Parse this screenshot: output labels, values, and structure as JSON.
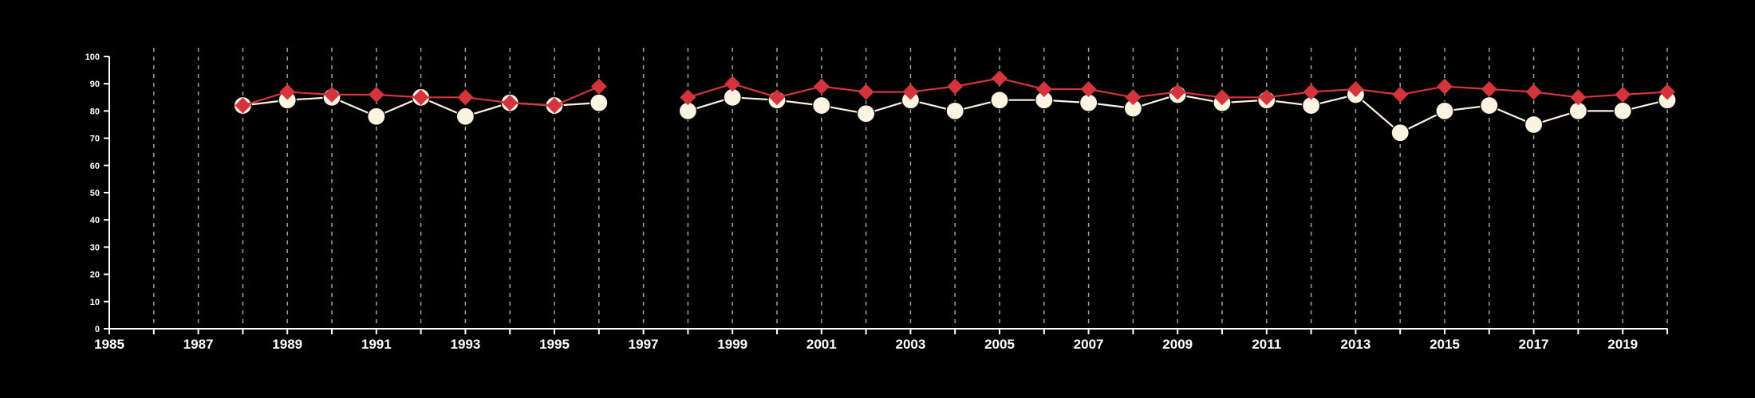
{
  "chart_data": {
    "type": "line",
    "title": "",
    "xlabel": "",
    "ylabel": "",
    "xlim": [
      1985,
      2020
    ],
    "ylim": [
      0,
      100
    ],
    "x_ticks": [
      "1985",
      "1987",
      "1989",
      "1991",
      "1993",
      "1995",
      "1997",
      "1999",
      "2001",
      "2003",
      "2005",
      "2007",
      "2009",
      "2011",
      "2013",
      "2015",
      "2017",
      "2019"
    ],
    "y_ticks": [
      "0",
      "10",
      "20",
      "30",
      "40",
      "50",
      "60",
      "70",
      "80",
      "90",
      "100"
    ],
    "grid": "vertical dashed lines at every year",
    "legend": "none",
    "series": [
      {
        "color": "#fdf3e3",
        "marker": "circle",
        "points": [
          {
            "x": 1988,
            "y": 82
          },
          {
            "x": 1989,
            "y": 84
          },
          {
            "x": 1990,
            "y": 85
          },
          {
            "x": 1991,
            "y": 78
          },
          {
            "x": 1992,
            "y": 85
          },
          {
            "x": 1993,
            "y": 78
          },
          {
            "x": 1994,
            "y": 83
          },
          {
            "x": 1995,
            "y": 82
          },
          {
            "x": 1996,
            "y": 83
          },
          {
            "x": 1997,
            "y": null
          },
          {
            "x": 1998,
            "y": 80
          },
          {
            "x": 1999,
            "y": 85
          },
          {
            "x": 2000,
            "y": 84
          },
          {
            "x": 2001,
            "y": 82
          },
          {
            "x": 2002,
            "y": 79
          },
          {
            "x": 2003,
            "y": 84
          },
          {
            "x": 2004,
            "y": 80
          },
          {
            "x": 2005,
            "y": 84
          },
          {
            "x": 2006,
            "y": 84
          },
          {
            "x": 2007,
            "y": 83
          },
          {
            "x": 2008,
            "y": 81
          },
          {
            "x": 2009,
            "y": 86
          },
          {
            "x": 2010,
            "y": 83
          },
          {
            "x": 2011,
            "y": 84
          },
          {
            "x": 2012,
            "y": 82
          },
          {
            "x": 2013,
            "y": 86
          },
          {
            "x": 2014,
            "y": 72
          },
          {
            "x": 2015,
            "y": 80
          },
          {
            "x": 2016,
            "y": 82
          },
          {
            "x": 2017,
            "y": 75
          },
          {
            "x": 2018,
            "y": 80
          },
          {
            "x": 2019,
            "y": 80
          },
          {
            "x": 2020,
            "y": 84
          }
        ]
      },
      {
        "color": "#d4343c",
        "marker": "diamond",
        "points": [
          {
            "x": 1988,
            "y": 82
          },
          {
            "x": 1989,
            "y": 87
          },
          {
            "x": 1990,
            "y": 86
          },
          {
            "x": 1991,
            "y": 86
          },
          {
            "x": 1992,
            "y": 85
          },
          {
            "x": 1993,
            "y": 85
          },
          {
            "x": 1994,
            "y": 83
          },
          {
            "x": 1995,
            "y": 82
          },
          {
            "x": 1996,
            "y": 89
          },
          {
            "x": 1997,
            "y": null
          },
          {
            "x": 1998,
            "y": 85
          },
          {
            "x": 1999,
            "y": 90
          },
          {
            "x": 2000,
            "y": 85
          },
          {
            "x": 2001,
            "y": 89
          },
          {
            "x": 2002,
            "y": 87
          },
          {
            "x": 2003,
            "y": 87
          },
          {
            "x": 2004,
            "y": 89
          },
          {
            "x": 2005,
            "y": 92
          },
          {
            "x": 2006,
            "y": 88
          },
          {
            "x": 2007,
            "y": 88
          },
          {
            "x": 2008,
            "y": 85
          },
          {
            "x": 2009,
            "y": 87
          },
          {
            "x": 2010,
            "y": 85
          },
          {
            "x": 2011,
            "y": 85
          },
          {
            "x": 2012,
            "y": 87
          },
          {
            "x": 2013,
            "y": 88
          },
          {
            "x": 2014,
            "y": 86
          },
          {
            "x": 2015,
            "y": 89
          },
          {
            "x": 2016,
            "y": 88
          },
          {
            "x": 2017,
            "y": 87
          },
          {
            "x": 2018,
            "y": 85
          },
          {
            "x": 2019,
            "y": 86
          },
          {
            "x": 2020,
            "y": 87
          }
        ]
      }
    ]
  }
}
